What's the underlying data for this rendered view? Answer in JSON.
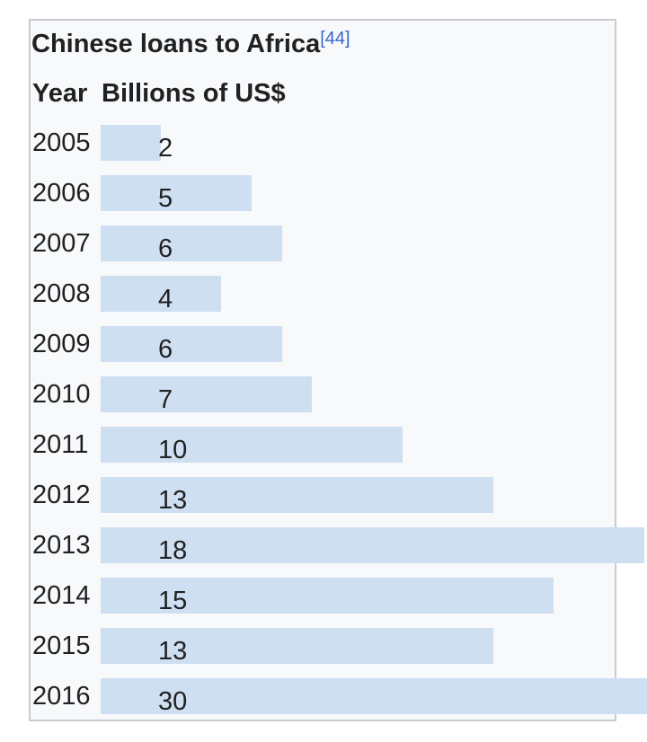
{
  "chart_data": {
    "type": "bar",
    "title": "Chinese loans to Africa",
    "title_ref": "[44]",
    "column_headers": [
      "Year",
      "Billions of US$"
    ],
    "categories": [
      "2005",
      "2006",
      "2007",
      "2008",
      "2009",
      "2010",
      "2011",
      "2012",
      "2013",
      "2014",
      "2015",
      "2016"
    ],
    "values": [
      2,
      5,
      6,
      4,
      6,
      7,
      10,
      13,
      18,
      15,
      13,
      30
    ],
    "orientation": "horizontal",
    "bar_color": "#cedff2",
    "background_color": "#f8f9fa",
    "border_color": "#c8ccd1",
    "link_color": "#3366cc"
  }
}
